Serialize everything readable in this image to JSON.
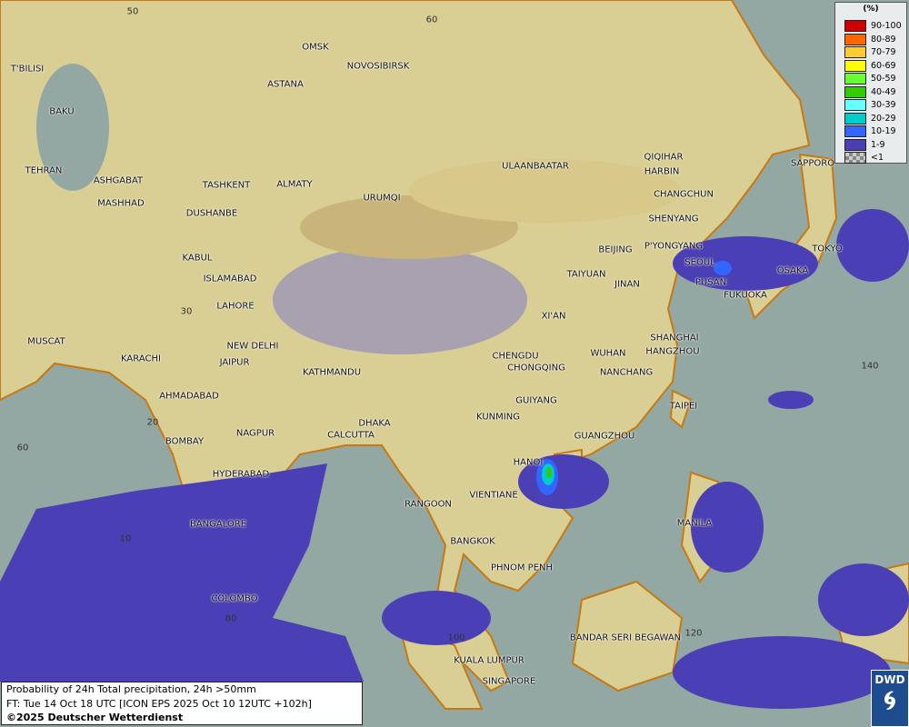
{
  "legend": {
    "unit": "(%)",
    "items": [
      {
        "label": "90-100",
        "color": "#cc0000"
      },
      {
        "label": "80-89",
        "color": "#ff6600"
      },
      {
        "label": "70-79",
        "color": "#ffcc33"
      },
      {
        "label": "60-69",
        "color": "#ffff00"
      },
      {
        "label": "50-59",
        "color": "#66ff33"
      },
      {
        "label": "40-49",
        "color": "#33cc00"
      },
      {
        "label": "30-39",
        "color": "#66ffff"
      },
      {
        "label": "20-29",
        "color": "#00cccc"
      },
      {
        "label": "10-19",
        "color": "#3366ff"
      },
      {
        "label": "1-9",
        "color": "#4b3fb5"
      },
      {
        "label": "<1",
        "color": "checker"
      }
    ]
  },
  "info": {
    "line1": "Probability of 24h Total precipitation, 24h >50mm",
    "line2": "FT: Tue 14 Oct 18 UTC [ICON EPS 2025 Oct 10 12UTC +102h]",
    "line3": "©2025 Deutscher Wetterdienst"
  },
  "logo": {
    "text": "DWD"
  },
  "cities": [
    "OMSK",
    "NOVOSIBIRSK",
    "ASTANA",
    "T'BILISI",
    "BAKU",
    "TEHRAN",
    "ASHGABAT",
    "MASHHAD",
    "TASHKENT",
    "ALMATY",
    "DUSHANBE",
    "URUMQI",
    "ULAANBAATAR",
    "QIQIHAR",
    "HARBIN",
    "CHANGCHUN",
    "SHENYANG",
    "SAPPORO",
    "BEIJING",
    "P'YONGYANG",
    "SEOUL",
    "TOKYO",
    "OSAKA",
    "PUSAN",
    "FUKUOKA",
    "KABUL",
    "ISLAMABAD",
    "LAHORE",
    "TAIYUAN",
    "JINAN",
    "XI'AN",
    "SHANGHAI",
    "HANGZHOU",
    "WUHAN",
    "CHENGDU",
    "CHONGQING",
    "NANCHANG",
    "NEW DELHI",
    "JAIPUR",
    "KARACHI",
    "MUSCAT",
    "KATHMANDU",
    "AHMADABAD",
    "TAIPEI",
    "GUIYANG",
    "KUNMING",
    "DHAKA",
    "CALCUTTA",
    "NAGPUR",
    "BOMBAY",
    "GUANGZHOU",
    "HANOI",
    "HYDERABAD",
    "VIENTIANE",
    "RANGOON",
    "MANILA",
    "BANGALORE",
    "BANGKOK",
    "PHNOM PENH",
    "COLOMBO",
    "BANDAR SERI BEGAWAN",
    "KUALA LUMPUR",
    "SINGAPORE"
  ],
  "grid_labels": [
    "50",
    "60",
    "30",
    "20",
    "60",
    "10",
    "80",
    "100",
    "120",
    "140"
  ]
}
